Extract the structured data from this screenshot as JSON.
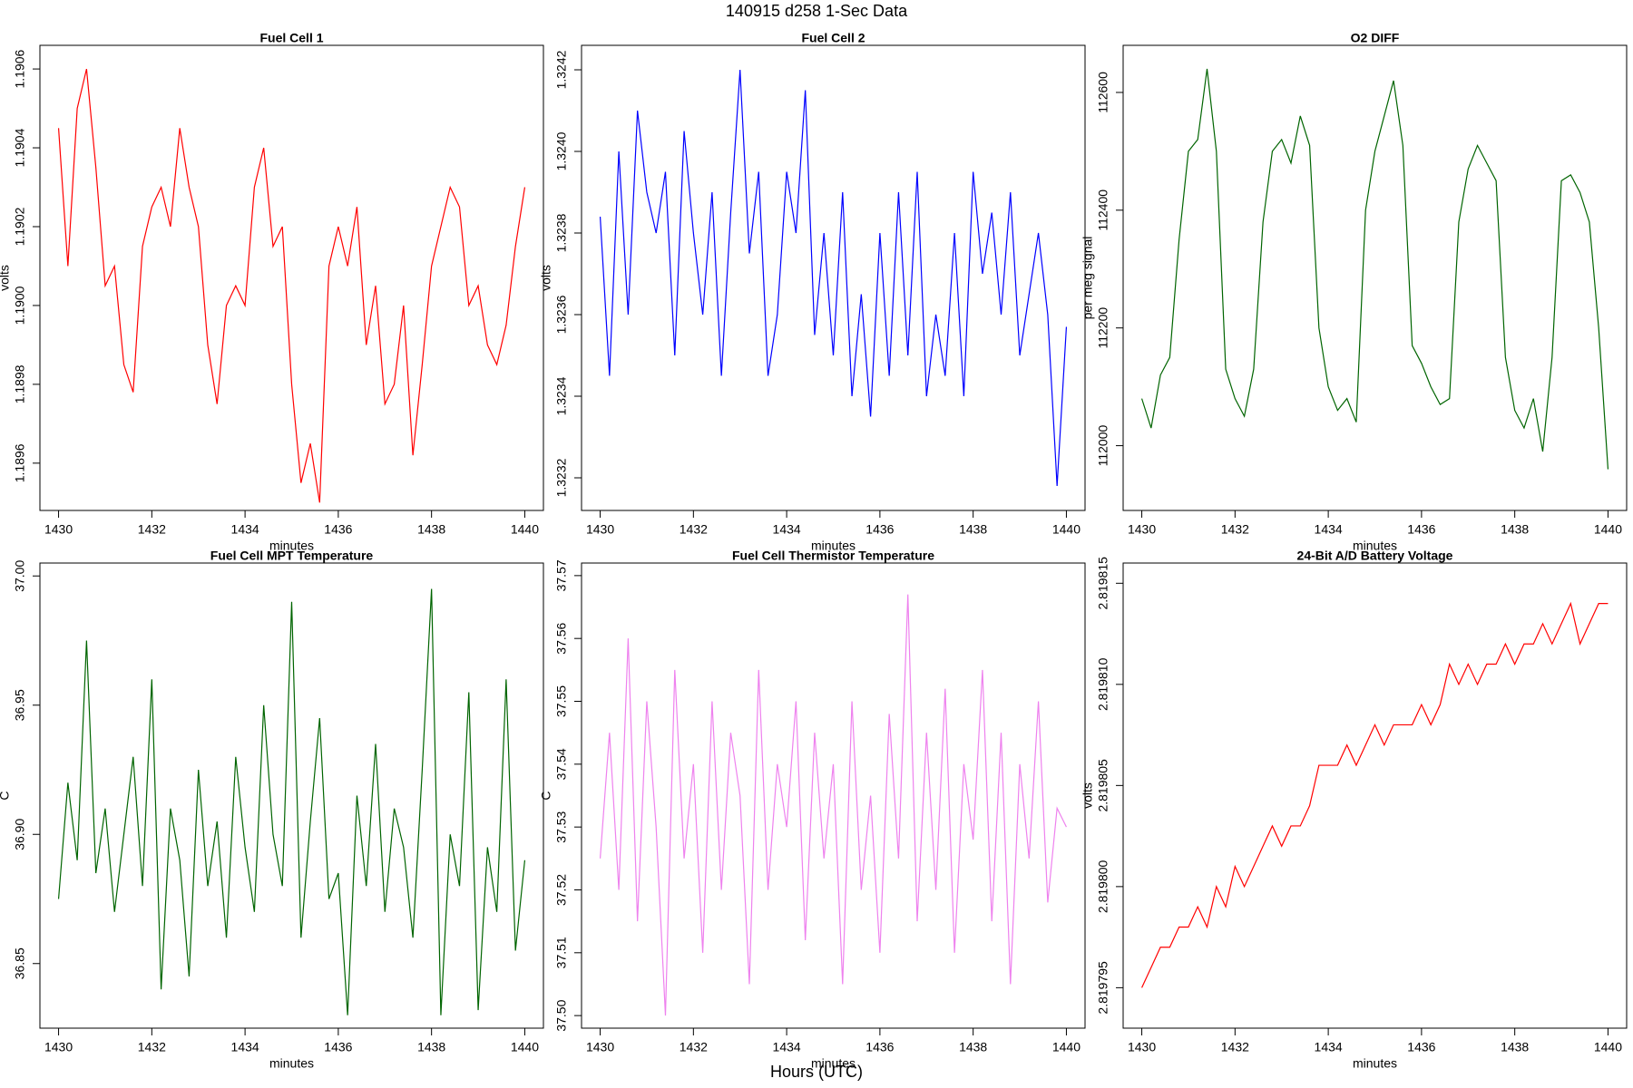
{
  "figure": {
    "title": "140915   d258   1-Sec Data",
    "xlabel": "Hours (UTC)"
  },
  "chart_data": [
    {
      "type": "line",
      "title": "Fuel Cell 1",
      "xlabel": "minutes",
      "ylabel": "volts",
      "color": "#ff0000",
      "xlim": [
        1429.6,
        1440.4
      ],
      "xticks": [
        1430,
        1432,
        1434,
        1436,
        1438,
        1440
      ],
      "ylim": [
        1.18948,
        1.19066
      ],
      "yticks": [
        1.1896,
        1.1898,
        {
          "value": 1.19,
          "label": "1.1900"
        },
        1.1902,
        1.1904,
        1.1906
      ],
      "x": [
        1430,
        1430.2,
        1430.4,
        1430.6,
        1430.8,
        1431,
        1431.2,
        1431.4,
        1431.6,
        1431.8,
        1432,
        1432.2,
        1432.4,
        1432.6,
        1432.8,
        1433,
        1433.2,
        1433.4,
        1433.6,
        1433.8,
        1434,
        1434.2,
        1434.4,
        1434.6,
        1434.8,
        1435,
        1435.2,
        1435.4,
        1435.6,
        1435.8,
        1436,
        1436.2,
        1436.4,
        1436.6,
        1436.8,
        1437,
        1437.2,
        1437.4,
        1437.6,
        1437.8,
        1438,
        1438.2,
        1438.4,
        1438.6,
        1438.8,
        1439,
        1439.2,
        1439.4,
        1439.6,
        1439.8,
        1440
      ],
      "values": [
        1.19045,
        1.1901,
        1.1905,
        1.1906,
        1.19035,
        1.19005,
        1.1901,
        1.18985,
        1.18978,
        1.19015,
        1.19025,
        1.1903,
        1.1902,
        1.19045,
        1.1903,
        1.1902,
        1.1899,
        1.18975,
        1.19,
        1.19005,
        1.19,
        1.1903,
        1.1904,
        1.19015,
        1.1902,
        1.1898,
        1.18955,
        1.18965,
        1.1895,
        1.1901,
        1.1902,
        1.1901,
        1.19025,
        1.1899,
        1.19005,
        1.18975,
        1.1898,
        1.19,
        1.18962,
        1.18985,
        1.1901,
        1.1902,
        1.1903,
        1.19025,
        1.19,
        1.19005,
        1.1899,
        1.18985,
        1.18995,
        1.19015,
        1.1903
      ]
    },
    {
      "type": "line",
      "title": "Fuel Cell 2",
      "xlabel": "minutes",
      "ylabel": "volts",
      "color": "#0000ff",
      "xlim": [
        1429.6,
        1440.4
      ],
      "xticks": [
        1430,
        1432,
        1434,
        1436,
        1438,
        1440
      ],
      "ylim": [
        1.32312,
        1.32426
      ],
      "yticks": [
        1.3232,
        1.3234,
        1.3236,
        1.3238,
        {
          "value": 1.324,
          "label": "1.3240"
        },
        1.3242
      ],
      "x": [
        1430,
        1430.2,
        1430.4,
        1430.6,
        1430.8,
        1431,
        1431.2,
        1431.4,
        1431.6,
        1431.8,
        1432,
        1432.2,
        1432.4,
        1432.6,
        1432.8,
        1433,
        1433.2,
        1433.4,
        1433.6,
        1433.8,
        1434,
        1434.2,
        1434.4,
        1434.6,
        1434.8,
        1435,
        1435.2,
        1435.4,
        1435.6,
        1435.8,
        1436,
        1436.2,
        1436.4,
        1436.6,
        1436.8,
        1437,
        1437.2,
        1437.4,
        1437.6,
        1437.8,
        1438,
        1438.2,
        1438.4,
        1438.6,
        1438.8,
        1439,
        1439.2,
        1439.4,
        1439.6,
        1439.8,
        1440
      ],
      "values": [
        1.32384,
        1.32345,
        1.324,
        1.3236,
        1.3241,
        1.3239,
        1.3238,
        1.32395,
        1.3235,
        1.32405,
        1.3238,
        1.3236,
        1.3239,
        1.32345,
        1.32385,
        1.3242,
        1.32375,
        1.32395,
        1.32345,
        1.3236,
        1.32395,
        1.3238,
        1.32415,
        1.32355,
        1.3238,
        1.3235,
        1.3239,
        1.3234,
        1.32365,
        1.32335,
        1.3238,
        1.32345,
        1.3239,
        1.3235,
        1.32395,
        1.3234,
        1.3236,
        1.32345,
        1.3238,
        1.3234,
        1.32395,
        1.3237,
        1.32385,
        1.3236,
        1.3239,
        1.3235,
        1.32365,
        1.3238,
        1.3236,
        1.32318,
        1.32357
      ]
    },
    {
      "type": "line",
      "title": "O2 DIFF",
      "xlabel": "minutes",
      "ylabel": "per meg signal",
      "color": "#006400",
      "xlim": [
        1429.6,
        1440.4
      ],
      "xticks": [
        1430,
        1432,
        1434,
        1436,
        1438,
        1440
      ],
      "ylim": [
        111890,
        112680
      ],
      "yticks": [
        112000,
        112200,
        112400,
        112600
      ],
      "x": [
        1430,
        1430.2,
        1430.4,
        1430.6,
        1430.8,
        1431,
        1431.2,
        1431.4,
        1431.6,
        1431.8,
        1432,
        1432.2,
        1432.4,
        1432.6,
        1432.8,
        1433,
        1433.2,
        1433.4,
        1433.6,
        1433.8,
        1434,
        1434.2,
        1434.4,
        1434.6,
        1434.8,
        1435,
        1435.2,
        1435.4,
        1435.6,
        1435.8,
        1436,
        1436.2,
        1436.4,
        1436.6,
        1436.8,
        1437,
        1437.2,
        1437.4,
        1437.6,
        1437.8,
        1438,
        1438.2,
        1438.4,
        1438.6,
        1438.8,
        1439,
        1439.2,
        1439.4,
        1439.6,
        1439.8,
        1440
      ],
      "values": [
        112080,
        112030,
        112120,
        112150,
        112350,
        112500,
        112520,
        112640,
        112500,
        112130,
        112080,
        112050,
        112130,
        112380,
        112500,
        112520,
        112480,
        112560,
        112510,
        112200,
        112100,
        112060,
        112080,
        112040,
        112400,
        112500,
        112560,
        112620,
        112510,
        112170,
        112140,
        112100,
        112070,
        112080,
        112380,
        112470,
        112510,
        112480,
        112450,
        112150,
        112060,
        112030,
        112080,
        111990,
        112150,
        112450,
        112460,
        112430,
        112380,
        112200,
        111960
      ]
    },
    {
      "type": "line",
      "title": "Fuel Cell MPT Temperature",
      "xlabel": "minutes",
      "ylabel": "C",
      "color": "#006400",
      "xlim": [
        1429.6,
        1440.4
      ],
      "xticks": [
        1430,
        1432,
        1434,
        1436,
        1438,
        1440
      ],
      "ylim": [
        36.825,
        37.005
      ],
      "yticks": [
        36.85,
        {
          "value": 36.9,
          "label": "36.90"
        },
        36.95,
        {
          "value": 37,
          "label": "37.00"
        }
      ],
      "x": [
        1430,
        1430.2,
        1430.4,
        1430.6,
        1430.8,
        1431,
        1431.2,
        1431.4,
        1431.6,
        1431.8,
        1432,
        1432.2,
        1432.4,
        1432.6,
        1432.8,
        1433,
        1433.2,
        1433.4,
        1433.6,
        1433.8,
        1434,
        1434.2,
        1434.4,
        1434.6,
        1434.8,
        1435,
        1435.2,
        1435.4,
        1435.6,
        1435.8,
        1436,
        1436.2,
        1436.4,
        1436.6,
        1436.8,
        1437,
        1437.2,
        1437.4,
        1437.6,
        1437.8,
        1438,
        1438.2,
        1438.4,
        1438.6,
        1438.8,
        1439,
        1439.2,
        1439.4,
        1439.6,
        1439.8,
        1440
      ],
      "values": [
        36.875,
        36.92,
        36.89,
        36.975,
        36.885,
        36.91,
        36.87,
        36.9,
        36.93,
        36.88,
        36.96,
        36.84,
        36.91,
        36.89,
        36.845,
        36.925,
        36.88,
        36.905,
        36.86,
        36.93,
        36.895,
        36.87,
        36.95,
        36.9,
        36.88,
        36.99,
        36.86,
        36.905,
        36.945,
        36.875,
        36.885,
        36.83,
        36.915,
        36.88,
        36.935,
        36.87,
        36.91,
        36.895,
        36.86,
        36.925,
        36.995,
        36.83,
        36.9,
        36.88,
        36.955,
        36.832,
        36.895,
        36.87,
        36.96,
        36.855,
        36.89
      ]
    },
    {
      "type": "line",
      "title": "Fuel Cell Thermistor Temperature",
      "xlabel": "minutes",
      "ylabel": "C",
      "color": "#ee82ee",
      "xlim": [
        1429.6,
        1440.4
      ],
      "xticks": [
        1430,
        1432,
        1434,
        1436,
        1438,
        1440
      ],
      "ylim": [
        37.498,
        37.572
      ],
      "yticks": [
        {
          "value": 37.5,
          "label": "37.50"
        },
        37.51,
        37.52,
        37.53,
        37.54,
        37.55,
        37.56,
        37.57
      ],
      "x": [
        1430,
        1430.2,
        1430.4,
        1430.6,
        1430.8,
        1431,
        1431.2,
        1431.4,
        1431.6,
        1431.8,
        1432,
        1432.2,
        1432.4,
        1432.6,
        1432.8,
        1433,
        1433.2,
        1433.4,
        1433.6,
        1433.8,
        1434,
        1434.2,
        1434.4,
        1434.6,
        1434.8,
        1435,
        1435.2,
        1435.4,
        1435.6,
        1435.8,
        1436,
        1436.2,
        1436.4,
        1436.6,
        1436.8,
        1437,
        1437.2,
        1437.4,
        1437.6,
        1437.8,
        1438,
        1438.2,
        1438.4,
        1438.6,
        1438.8,
        1439,
        1439.2,
        1439.4,
        1439.6,
        1439.8,
        1440
      ],
      "values": [
        37.525,
        37.545,
        37.52,
        37.56,
        37.515,
        37.55,
        37.53,
        37.5,
        37.555,
        37.525,
        37.54,
        37.51,
        37.55,
        37.52,
        37.545,
        37.535,
        37.505,
        37.555,
        37.52,
        37.54,
        37.53,
        37.55,
        37.512,
        37.545,
        37.525,
        37.54,
        37.505,
        37.55,
        37.52,
        37.535,
        37.51,
        37.548,
        37.525,
        37.567,
        37.515,
        37.545,
        37.52,
        37.552,
        37.51,
        37.54,
        37.528,
        37.555,
        37.515,
        37.545,
        37.505,
        37.54,
        37.525,
        37.55,
        37.518,
        37.533,
        37.53
      ]
    },
    {
      "type": "line",
      "title": "24-Bit A/D Battery Voltage",
      "xlabel": "minutes",
      "ylabel": "volts",
      "color": "#ff0000",
      "xlim": [
        1429.6,
        1440.4
      ],
      "xticks": [
        1430,
        1432,
        1434,
        1436,
        1438,
        1440
      ],
      "ylim": [
        2.819793,
        2.819816
      ],
      "yticks": [
        2.819795,
        {
          "value": 2.8198,
          "label": "2.819800"
        },
        2.819805,
        {
          "value": 2.81981,
          "label": "2.819810"
        },
        2.819815
      ],
      "x": [
        1430,
        1430.2,
        1430.4,
        1430.6,
        1430.8,
        1431,
        1431.2,
        1431.4,
        1431.6,
        1431.8,
        1432,
        1432.2,
        1432.4,
        1432.6,
        1432.8,
        1433,
        1433.2,
        1433.4,
        1433.6,
        1433.8,
        1434,
        1434.2,
        1434.4,
        1434.6,
        1434.8,
        1435,
        1435.2,
        1435.4,
        1435.6,
        1435.8,
        1436,
        1436.2,
        1436.4,
        1436.6,
        1436.8,
        1437,
        1437.2,
        1437.4,
        1437.6,
        1437.8,
        1438,
        1438.2,
        1438.4,
        1438.6,
        1438.8,
        1439,
        1439.2,
        1439.4,
        1439.6,
        1439.8,
        1440
      ],
      "values": [
        2.819795,
        2.819796,
        2.819797,
        2.819797,
        2.819798,
        2.819798,
        2.819799,
        2.819798,
        2.8198,
        2.819799,
        2.819801,
        2.8198,
        2.819801,
        2.819802,
        2.819803,
        2.819802,
        2.819803,
        2.819803,
        2.819804,
        2.819806,
        2.819806,
        2.819806,
        2.819807,
        2.819806,
        2.819807,
        2.819808,
        2.819807,
        2.819808,
        2.819808,
        2.819808,
        2.819809,
        2.819808,
        2.819809,
        2.819811,
        2.81981,
        2.819811,
        2.81981,
        2.819811,
        2.819811,
        2.819812,
        2.819811,
        2.819812,
        2.819812,
        2.819813,
        2.819812,
        2.819813,
        2.819814,
        2.819812,
        2.819813,
        2.819814,
        2.819814
      ]
    }
  ]
}
